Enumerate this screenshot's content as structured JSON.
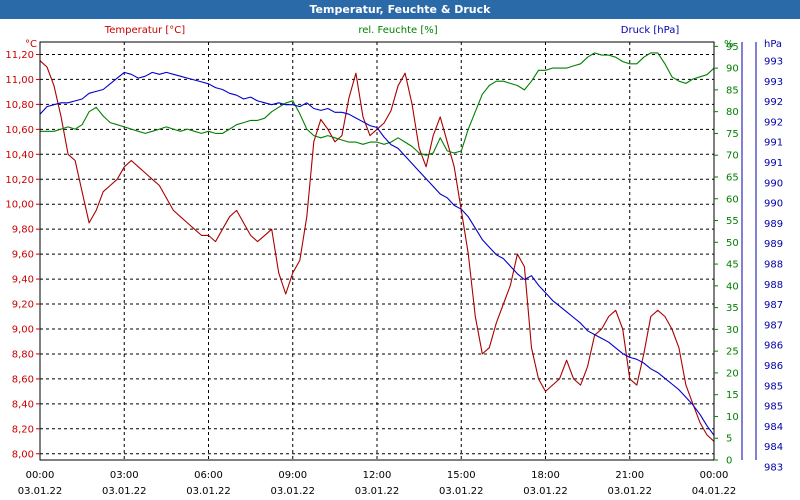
{
  "window": {
    "title": "Temperatur, Feuchte & Druck"
  },
  "chart_data": {
    "type": "line",
    "title": "Temperatur, Feuchte & Druck",
    "grid": true,
    "x_ticks": [
      {
        "time": "00:00",
        "date": "03.01.22"
      },
      {
        "time": "03:00",
        "date": "03.01.22"
      },
      {
        "time": "06:00",
        "date": "03.01.22"
      },
      {
        "time": "09:00",
        "date": "03.01.22"
      },
      {
        "time": "12:00",
        "date": "03.01.22"
      },
      {
        "time": "15:00",
        "date": "03.01.22"
      },
      {
        "time": "18:00",
        "date": "03.01.22"
      },
      {
        "time": "21:00",
        "date": "03.01.22"
      },
      {
        "time": "00:00",
        "date": "04.01.22"
      }
    ],
    "x_hours_range": [
      0,
      24
    ],
    "axes": {
      "temperature": {
        "label": "Temperatur [°C]",
        "unit": "°C",
        "color": "#cc0000",
        "range": [
          7.95,
          11.3
        ],
        "ticks": [
          "8,00",
          "8,20",
          "8,40",
          "8,60",
          "8,80",
          "9,00",
          "9,20",
          "9,40",
          "9,60",
          "9,80",
          "10,00",
          "10,20",
          "10,40",
          "10,60",
          "10,80",
          "11,00",
          "11,20"
        ]
      },
      "humidity": {
        "label": "rel. Feuchte [%]",
        "unit": "%",
        "color": "#008000",
        "range": [
          0,
          96
        ],
        "ticks": [
          "0",
          "5",
          "10",
          "15",
          "20",
          "25",
          "30",
          "35",
          "40",
          "45",
          "50",
          "55",
          "60",
          "65",
          "70",
          "75",
          "80",
          "85",
          "90",
          "95"
        ]
      },
      "pressure": {
        "label": "Druck [hPa]",
        "unit": "hPa",
        "color": "#0000aa",
        "range": [
          982.7,
          993.7
        ],
        "ticks": [
          "983",
          "984",
          "984",
          "985",
          "985",
          "986",
          "986",
          "987",
          "987",
          "988",
          "988",
          "989",
          "989",
          "990",
          "990",
          "991",
          "991",
          "992",
          "992",
          "993",
          "993"
        ]
      }
    },
    "series": [
      {
        "name": "Temperatur [°C]",
        "axis": "temperature",
        "color": "#aa0000",
        "x": [
          0,
          0.25,
          0.5,
          0.75,
          1.0,
          1.25,
          1.5,
          1.75,
          2.0,
          2.25,
          2.5,
          2.75,
          3.0,
          3.25,
          3.5,
          3.75,
          4.0,
          4.25,
          4.5,
          4.75,
          5.0,
          5.25,
          5.5,
          5.75,
          6.0,
          6.25,
          6.5,
          6.75,
          7.0,
          7.25,
          7.5,
          7.75,
          8.0,
          8.25,
          8.5,
          8.75,
          9.0,
          9.25,
          9.5,
          9.75,
          10.0,
          10.25,
          10.5,
          10.75,
          11.0,
          11.25,
          11.5,
          11.75,
          12.0,
          12.25,
          12.5,
          12.75,
          13.0,
          13.25,
          13.5,
          13.75,
          14.0,
          14.25,
          14.5,
          14.75,
          15.0,
          15.25,
          15.5,
          15.75,
          16.0,
          16.25,
          16.5,
          16.75,
          17.0,
          17.25,
          17.5,
          17.75,
          18.0,
          18.25,
          18.5,
          18.75,
          19.0,
          19.25,
          19.5,
          19.75,
          20.0,
          20.25,
          20.5,
          20.75,
          21.0,
          21.25,
          21.5,
          21.75,
          22.0,
          22.25,
          22.5,
          22.75,
          23.0,
          23.25,
          23.5,
          23.75,
          24.0
        ],
        "values": [
          11.15,
          11.1,
          10.95,
          10.7,
          10.4,
          10.35,
          10.1,
          9.85,
          9.95,
          10.1,
          10.15,
          10.2,
          10.3,
          10.35,
          10.3,
          10.25,
          10.2,
          10.15,
          10.05,
          9.95,
          9.9,
          9.85,
          9.8,
          9.75,
          9.75,
          9.7,
          9.8,
          9.9,
          9.95,
          9.85,
          9.75,
          9.7,
          9.75,
          9.8,
          9.45,
          9.28,
          9.45,
          9.55,
          9.9,
          10.5,
          10.68,
          10.6,
          10.5,
          10.55,
          10.85,
          11.05,
          10.7,
          10.55,
          10.6,
          10.65,
          10.75,
          10.95,
          11.05,
          10.8,
          10.45,
          10.3,
          10.55,
          10.7,
          10.5,
          10.3,
          9.95,
          9.6,
          9.1,
          8.8,
          8.85,
          9.05,
          9.2,
          9.35,
          9.6,
          9.5,
          8.85,
          8.6,
          8.5,
          8.55,
          8.6,
          8.75,
          8.6,
          8.55,
          8.7,
          8.95,
          9.0,
          9.1,
          9.15,
          9.0,
          8.6,
          8.55,
          8.8,
          9.1,
          9.15,
          9.1,
          9.0,
          8.85,
          8.55,
          8.4,
          8.25,
          8.15,
          8.1
        ]
      },
      {
        "name": "rel. Feuchte [%]",
        "axis": "humidity",
        "color": "#008000",
        "x": [
          0,
          0.25,
          0.5,
          0.75,
          1.0,
          1.25,
          1.5,
          1.75,
          2.0,
          2.25,
          2.5,
          2.75,
          3.0,
          3.25,
          3.5,
          3.75,
          4.0,
          4.25,
          4.5,
          4.75,
          5.0,
          5.25,
          5.5,
          5.75,
          6.0,
          6.25,
          6.5,
          6.75,
          7.0,
          7.25,
          7.5,
          7.75,
          8.0,
          8.25,
          8.5,
          8.75,
          9.0,
          9.25,
          9.5,
          9.75,
          10.0,
          10.25,
          10.5,
          10.75,
          11.0,
          11.25,
          11.5,
          11.75,
          12.0,
          12.25,
          12.5,
          12.75,
          13.0,
          13.25,
          13.5,
          13.75,
          14.0,
          14.25,
          14.5,
          14.75,
          15.0,
          15.25,
          15.5,
          15.75,
          16.0,
          16.25,
          16.5,
          16.75,
          17.0,
          17.25,
          17.5,
          17.75,
          18.0,
          18.25,
          18.5,
          18.75,
          19.0,
          19.25,
          19.5,
          19.75,
          20.0,
          20.25,
          20.5,
          20.75,
          21.0,
          21.25,
          21.5,
          21.75,
          22.0,
          22.25,
          22.5,
          22.75,
          23.0,
          23.25,
          23.5,
          23.75,
          24.0
        ],
        "values": [
          75.5,
          75.5,
          75.5,
          76.0,
          76.5,
          76.0,
          77.0,
          80.0,
          81.0,
          79.0,
          77.5,
          77.0,
          76.5,
          76.0,
          75.5,
          75.0,
          75.5,
          76.0,
          76.5,
          76.0,
          75.5,
          76.0,
          75.5,
          75.0,
          75.5,
          75.0,
          75.0,
          76.0,
          77.0,
          77.5,
          78.0,
          78.0,
          78.5,
          80.0,
          81.0,
          82.0,
          82.5,
          79.5,
          76.0,
          74.5,
          74.0,
          74.5,
          74.0,
          73.5,
          73.0,
          73.0,
          72.5,
          73.0,
          73.0,
          72.5,
          73.0,
          74.0,
          73.0,
          72.0,
          70.5,
          70.0,
          70.5,
          74.0,
          71.0,
          70.5,
          71.0,
          76.0,
          80.0,
          84.0,
          86.0,
          87.0,
          87.0,
          86.5,
          86.0,
          85.0,
          87.0,
          89.5,
          89.5,
          90.0,
          90.0,
          90.0,
          90.5,
          91.0,
          92.5,
          93.5,
          93.0,
          93.0,
          92.5,
          91.5,
          91.0,
          91.0,
          92.5,
          93.5,
          93.5,
          91.0,
          88.0,
          87.0,
          86.5,
          87.5,
          88.0,
          88.5,
          90.0
        ]
      },
      {
        "name": "Druck [hPa]",
        "axis": "pressure",
        "color": "#0000cc",
        "x": [
          0,
          0.25,
          0.5,
          0.75,
          1.0,
          1.25,
          1.5,
          1.75,
          2.0,
          2.25,
          2.5,
          2.75,
          3.0,
          3.25,
          3.5,
          3.75,
          4.0,
          4.25,
          4.5,
          4.75,
          5.0,
          5.25,
          5.5,
          5.75,
          6.0,
          6.25,
          6.5,
          6.75,
          7.0,
          7.25,
          7.5,
          7.75,
          8.0,
          8.25,
          8.5,
          8.75,
          9.0,
          9.25,
          9.5,
          9.75,
          10.0,
          10.25,
          10.5,
          10.75,
          11.0,
          11.25,
          11.5,
          11.75,
          12.0,
          12.25,
          12.5,
          12.75,
          13.0,
          13.25,
          13.5,
          13.75,
          14.0,
          14.25,
          14.5,
          14.75,
          15.0,
          15.25,
          15.5,
          15.75,
          16.0,
          16.25,
          16.5,
          16.75,
          17.0,
          17.25,
          17.5,
          17.75,
          18.0,
          18.25,
          18.5,
          18.75,
          19.0,
          19.25,
          19.5,
          19.75,
          20.0,
          20.25,
          20.5,
          20.75,
          21.0,
          21.25,
          21.5,
          21.75,
          22.0,
          22.25,
          22.5,
          22.75,
          23.0,
          23.25,
          23.5,
          23.75,
          24.0
        ],
        "values": [
          991.8,
          992.0,
          992.05,
          992.1,
          992.1,
          992.15,
          992.2,
          992.35,
          992.4,
          992.45,
          992.6,
          992.75,
          992.9,
          992.85,
          992.75,
          992.8,
          992.9,
          992.85,
          992.9,
          992.85,
          992.8,
          992.75,
          992.7,
          992.65,
          992.6,
          992.5,
          992.45,
          992.35,
          992.3,
          992.2,
          992.25,
          992.15,
          992.1,
          992.05,
          992.1,
          992.05,
          992.05,
          992.0,
          992.1,
          991.95,
          991.9,
          991.95,
          991.85,
          991.85,
          991.8,
          991.7,
          991.6,
          991.5,
          991.45,
          991.2,
          991.0,
          990.9,
          990.7,
          990.5,
          990.3,
          990.1,
          989.9,
          989.7,
          989.6,
          989.4,
          989.3,
          989.1,
          988.8,
          988.5,
          988.3,
          988.1,
          988.0,
          987.8,
          987.6,
          987.45,
          987.55,
          987.3,
          987.1,
          986.9,
          986.75,
          986.6,
          986.45,
          986.3,
          986.1,
          986.0,
          985.9,
          985.8,
          985.65,
          985.5,
          985.4,
          985.35,
          985.25,
          985.1,
          985.0,
          984.85,
          984.7,
          984.55,
          984.35,
          984.15,
          983.9,
          983.6,
          983.35
        ]
      }
    ]
  }
}
